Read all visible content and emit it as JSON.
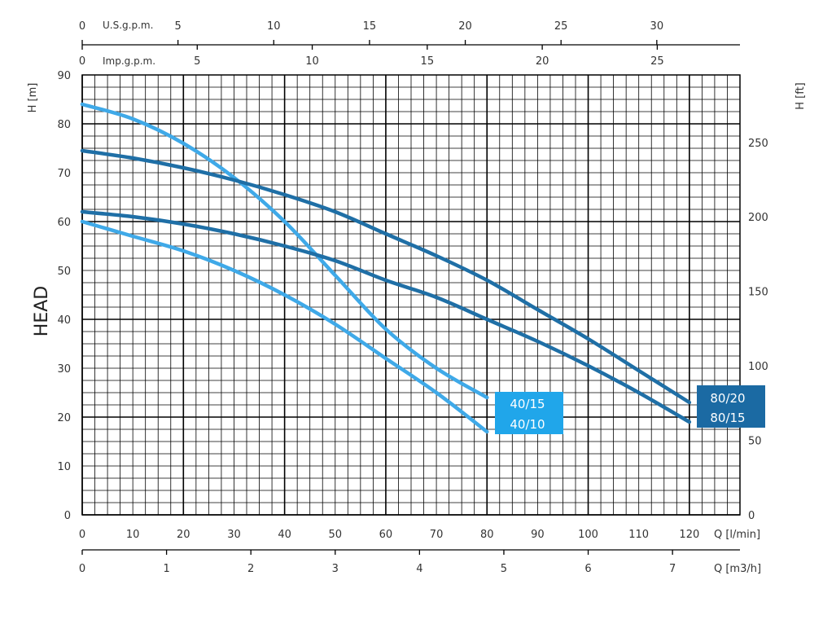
{
  "chart_data": {
    "type": "line",
    "title": "",
    "ylabel": "HEAD",
    "xlim": [
      0,
      130
    ],
    "ylim": [
      0,
      90
    ],
    "grid": true,
    "axes": {
      "y_left_label": "H [m]",
      "y_left_ticks": [
        0,
        10,
        20,
        30,
        40,
        50,
        60,
        70,
        80,
        90
      ],
      "y_right_label": "H [ft]",
      "y_right_ticks": [
        0,
        50,
        100,
        150,
        200,
        250
      ],
      "x_bottom_label": "Q [l/min]",
      "x_bottom_ticks": [
        0,
        10,
        20,
        30,
        40,
        50,
        60,
        70,
        80,
        90,
        100,
        110,
        120
      ],
      "x_m3h_label": "Q [m3/h]",
      "x_m3h_ticks": [
        0,
        1,
        2,
        3,
        4,
        5,
        6,
        7
      ],
      "x_usgpm_label": "U.S.g.p.m.",
      "x_usgpm_ticks": [
        0,
        5,
        10,
        15,
        20,
        25,
        30
      ],
      "x_impgpm_label": "Imp.g.p.m.",
      "x_impgpm_ticks": [
        0,
        5,
        10,
        15,
        20,
        25
      ]
    },
    "series": [
      {
        "name": "40/15",
        "color": "#3fa9e8",
        "x": [
          0,
          10,
          20,
          30,
          40,
          50,
          60,
          70,
          80
        ],
        "y": [
          84,
          81,
          76,
          69,
          60,
          49,
          38,
          30,
          24
        ]
      },
      {
        "name": "40/10",
        "color": "#3fa9e8",
        "x": [
          0,
          10,
          20,
          30,
          40,
          50,
          60,
          70,
          80
        ],
        "y": [
          60,
          57,
          54,
          50,
          45,
          39,
          32,
          25,
          17
        ]
      },
      {
        "name": "80/20",
        "color": "#1f6fa6",
        "x": [
          0,
          10,
          20,
          30,
          40,
          50,
          60,
          70,
          80,
          90,
          100,
          110,
          120
        ],
        "y": [
          74.5,
          73,
          71,
          68.5,
          65.5,
          62,
          57.5,
          53,
          48,
          42,
          36,
          29.5,
          23
        ]
      },
      {
        "name": "80/15",
        "color": "#1f6fa6",
        "x": [
          0,
          10,
          20,
          30,
          40,
          50,
          60,
          70,
          80,
          90,
          100,
          110,
          120
        ],
        "y": [
          62,
          61,
          59.5,
          57.5,
          55,
          52,
          48,
          44.5,
          40,
          35.5,
          30.5,
          25,
          19
        ]
      }
    ],
    "legend": [
      {
        "group": "light",
        "color": "#20a6ea",
        "labels": [
          "40/15",
          "40/10"
        ]
      },
      {
        "group": "dark",
        "color": "#1b6aa3",
        "labels": [
          "80/20",
          "80/15"
        ]
      }
    ]
  }
}
